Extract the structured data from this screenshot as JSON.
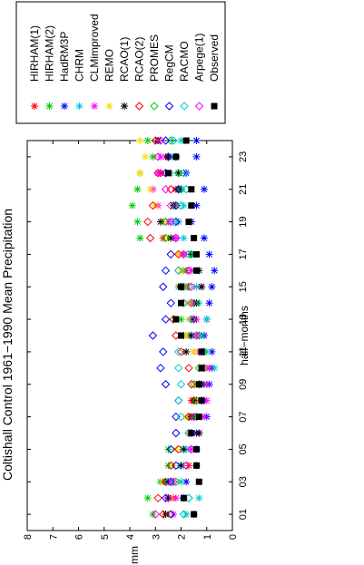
{
  "chart_data": {
    "type": "scatter",
    "title": "Coltishall Control 1961−1990 Mean Precipitation",
    "xlabel": "half−months",
    "ylabel": "mm",
    "ylim": [
      0,
      8
    ],
    "xlim": [
      0,
      24
    ],
    "yticks": [
      "0",
      "1",
      "2",
      "3",
      "4",
      "5",
      "6",
      "7",
      "8"
    ],
    "xticks": [
      "01",
      "03",
      "05",
      "07",
      "09",
      "11",
      "13",
      "15",
      "17",
      "19",
      "21",
      "23"
    ],
    "legend_position": "top-right",
    "orientation": "rotated 90 degrees counter-clockwise",
    "series": [
      {
        "name": "HIRHAM(1)",
        "marker": "*",
        "color": "#ff0000",
        "values": [
          2.6,
          2.3,
          2.5,
          1.7,
          1.4,
          1.3,
          1.5,
          1.6,
          1.4,
          1.1,
          1.5,
          1.7,
          1.6,
          1.4,
          1.8,
          1.8,
          1.9,
          2.7,
          2.1,
          2.2,
          2.2,
          2.8,
          2.6,
          2.9
        ]
      },
      {
        "name": "HIRHAM(2)",
        "marker": "*",
        "color": "#00cc00",
        "values": [
          3.1,
          3.3,
          2.8,
          2.5,
          2.5,
          1.6,
          1.7,
          1.5,
          1.2,
          1.0,
          1.3,
          1.9,
          2.0,
          1.7,
          2.1,
          1.9,
          1.9,
          3.6,
          3.7,
          3.9,
          3.7,
          3.6,
          3.1,
          3.3
        ]
      },
      {
        "name": "HadRM3P",
        "marker": "*",
        "color": "#0000ff",
        "values": [
          1.5,
          1.9,
          1.8,
          1.4,
          1.4,
          1.4,
          1.0,
          1.1,
          0.9,
          0.8,
          0.8,
          1.1,
          1.0,
          0.9,
          0.8,
          0.7,
          0.9,
          1.1,
          1.6,
          1.4,
          1.1,
          1.8,
          1.4,
          1.4
        ]
      },
      {
        "name": "CHRM",
        "marker": "*",
        "color": "#00cccc",
        "values": [
          1.8,
          1.3,
          2.0,
          2.0,
          1.8,
          1.6,
          1.4,
          1.2,
          1.1,
          0.7,
          1.0,
          1.2,
          1.0,
          1.3,
          1.4,
          1.4,
          1.6,
          1.9,
          2.1,
          1.9,
          2.0,
          2.4,
          2.4,
          2.0
        ]
      },
      {
        "name": "CLMimproved",
        "marker": "*",
        "color": "#ff00ff",
        "values": [
          2.3,
          2.2,
          2.4,
          2.0,
          1.6,
          1.3,
          1.1,
          1.0,
          1.0,
          0.9,
          1.3,
          1.4,
          1.4,
          1.6,
          1.2,
          1.6,
          1.9,
          2.2,
          2.5,
          2.9,
          3.1,
          2.9,
          2.8,
          2.9
        ]
      },
      {
        "name": "REMO",
        "marker": "*",
        "color": "#ffdd00",
        "values": [
          2.5,
          2.4,
          2.7,
          2.3,
          2.2,
          1.7,
          1.8,
          1.4,
          1.4,
          1.1,
          1.5,
          1.8,
          1.7,
          1.7,
          1.9,
          2.0,
          2.1,
          2.5,
          2.7,
          3.0,
          3.2,
          3.6,
          3.4,
          3.6
        ]
      },
      {
        "name": "RCAO(1)",
        "marker": "*",
        "color": "#000000",
        "values": [
          2.6,
          2.5,
          2.6,
          2.0,
          1.9,
          1.3,
          1.6,
          1.5,
          1.2,
          1.2,
          1.8,
          1.6,
          1.5,
          1.4,
          1.2,
          1.3,
          1.6,
          2.4,
          2.8,
          2.3,
          2.1,
          2.1,
          2.5,
          2.9
        ]
      },
      {
        "name": "RCAO(2)",
        "marker": "diamond",
        "color": "#ff0000",
        "values": [
          2.7,
          2.9,
          2.6,
          2.4,
          2.1,
          1.7,
          1.7,
          1.5,
          1.6,
          1.7,
          2.0,
          2.2,
          2.3,
          1.9,
          2.0,
          2.1,
          2.1,
          3.2,
          3.3,
          3.1,
          2.4,
          2.9,
          2.5,
          3.0
        ]
      },
      {
        "name": "PROMES",
        "marker": "diamond",
        "color": "#00cc00",
        "values": [
          1.9,
          1.7,
          2.2,
          1.8,
          1.6,
          1.6,
          1.4,
          1.4,
          1.5,
          1.3,
          1.1,
          1.3,
          1.6,
          1.5,
          1.7,
          1.7,
          1.6,
          2.6,
          2.6,
          2.3,
          2.0,
          2.1,
          2.2,
          2.4
        ]
      },
      {
        "name": "RegCM",
        "marker": "diamond",
        "color": "#0000ff",
        "values": [
          2.4,
          2.6,
          2.4,
          2.2,
          2.4,
          2.2,
          2.2,
          2.1,
          2.6,
          2.8,
          2.7,
          3.1,
          2.6,
          2.4,
          2.7,
          2.6,
          2.4,
          2.2,
          2.2,
          2.2,
          2.1,
          2.6,
          2.5,
          2.6
        ]
      },
      {
        "name": "RACMO",
        "marker": "diamond",
        "color": "#00cccc",
        "values": [
          1.9,
          1.7,
          2.5,
          2.0,
          1.9,
          1.7,
          2.0,
          2.1,
          2.0,
          2.1,
          2.1,
          1.6,
          1.6,
          1.9,
          1.9,
          2.1,
          1.7,
          2.2,
          2.3,
          2.0,
          1.8,
          1.9,
          2.2,
          2.3
        ]
      },
      {
        "name": "Arpege(1)",
        "marker": "diamond",
        "color": "#ff00ff",
        "values": [
          3.0,
          2.5,
          2.3,
          1.8,
          1.6,
          1.6,
          1.5,
          1.2,
          1.3,
          1.1,
          1.2,
          1.4,
          1.5,
          1.6,
          1.6,
          1.7,
          1.9,
          2.2,
          2.4,
          2.4,
          2.6,
          2.8,
          2.9,
          2.8
        ]
      },
      {
        "name": "Observed",
        "marker": "square",
        "color": "#000000",
        "values": [
          1.5,
          1.9,
          1.3,
          1.4,
          1.4,
          1.6,
          1.3,
          1.2,
          1.3,
          1.2,
          1.2,
          2.0,
          2.2,
          2.0,
          2.0,
          1.4,
          1.4,
          1.5,
          1.7,
          1.6,
          1.6,
          2.5,
          2.2,
          1.8
        ]
      }
    ]
  }
}
